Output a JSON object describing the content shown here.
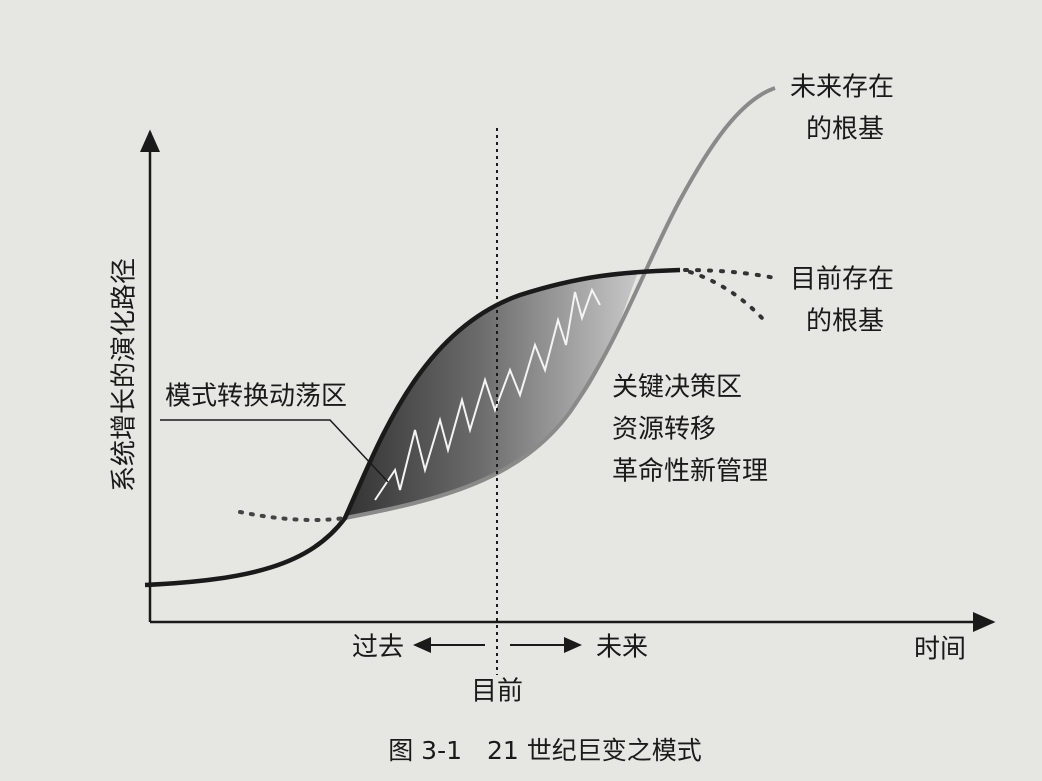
{
  "axes": {
    "y_label": "系统增长的演化路径",
    "x_label": "时间"
  },
  "timeline": {
    "past": "过去",
    "future": "未来",
    "present": "目前"
  },
  "curves": {
    "future_foundation": [
      "未来存在",
      "的根基"
    ],
    "current_foundation": [
      "目前存在",
      "的根基"
    ]
  },
  "zone_label": "模式转换动荡区",
  "decision_zone": [
    "关键决策区",
    "资源转移",
    "革命性新管理"
  ],
  "caption": "图 3-1　21 世纪巨变之模式"
}
